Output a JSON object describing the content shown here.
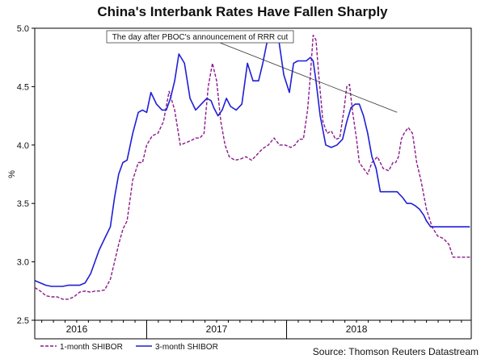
{
  "title": "China's Interbank Rates Have Fallen Sharply",
  "source": "Source: Thomson Reuters Datastream",
  "chart_data": {
    "type": "line",
    "ylabel": "%",
    "xlabel": "",
    "ylim": [
      2.5,
      5.0
    ],
    "yticks": [
      "2.5",
      "3.0",
      "3.5",
      "4.0",
      "4.5",
      "5.0"
    ],
    "xlim": [
      2015.7,
      2018.82
    ],
    "year_labels": [
      {
        "label": "2016",
        "x": 2016.0
      },
      {
        "label": "2017",
        "x": 2017.0
      },
      {
        "label": "2018",
        "x": 2018.0
      }
    ],
    "grid": false,
    "legend_position": "bottom",
    "annotation": {
      "text": "The day after PBOC's announcement of RRR cut",
      "points_to_x": 2018.29,
      "points_to_y": 4.28
    },
    "series": [
      {
        "name": "1-month SHIBOR",
        "color": "#8b1a8b",
        "style": "dashed",
        "x": [
          2015.7,
          2015.74,
          2015.78,
          2015.82,
          2015.86,
          2015.9,
          2015.94,
          2015.98,
          2016.02,
          2016.06,
          2016.1,
          2016.13,
          2016.16,
          2016.2,
          2016.24,
          2016.27,
          2016.3,
          2016.33,
          2016.36,
          2016.4,
          2016.44,
          2016.47,
          2016.5,
          2016.54,
          2016.58,
          2016.62,
          2016.66,
          2016.7,
          2016.74,
          2016.78,
          2016.82,
          2016.85,
          2016.88,
          2016.91,
          2016.94,
          2016.97,
          2017.0,
          2017.03,
          2017.06,
          2017.09,
          2017.13,
          2017.17,
          2017.21,
          2017.25,
          2017.29,
          2017.33,
          2017.37,
          2017.41,
          2017.45,
          2017.49,
          2017.53,
          2017.56,
          2017.59,
          2017.62,
          2017.65,
          2017.67,
          2017.69,
          2017.71,
          2017.73,
          2017.76,
          2017.79,
          2017.82,
          2017.85,
          2017.88,
          2017.91,
          2017.93,
          2017.95,
          2017.97,
          2018.0,
          2018.02,
          2018.05,
          2018.08,
          2018.11,
          2018.15,
          2018.19,
          2018.23,
          2018.26,
          2018.28,
          2018.3,
          2018.32,
          2018.34,
          2018.37,
          2018.4,
          2018.43,
          2018.46,
          2018.5,
          2018.54,
          2018.58,
          2018.62,
          2018.66,
          2018.69,
          2018.71,
          2018.73,
          2018.75,
          2018.78,
          2018.81
        ],
        "values": [
          2.78,
          2.75,
          2.71,
          2.7,
          2.7,
          2.68,
          2.68,
          2.7,
          2.74,
          2.75,
          2.74,
          2.75,
          2.75,
          2.76,
          2.85,
          3.0,
          3.15,
          3.28,
          3.35,
          3.7,
          3.85,
          3.85,
          4.0,
          4.08,
          4.1,
          4.2,
          4.46,
          4.3,
          4.0,
          4.02,
          4.04,
          4.06,
          4.06,
          4.1,
          4.5,
          4.7,
          4.55,
          4.2,
          4.0,
          3.9,
          3.87,
          3.88,
          3.9,
          3.87,
          3.92,
          3.97,
          4.0,
          4.06,
          4.0,
          4.0,
          3.98,
          4.0,
          4.05,
          4.05,
          4.3,
          4.6,
          4.94,
          4.9,
          4.6,
          4.2,
          4.1,
          4.12,
          4.05,
          4.06,
          4.3,
          4.5,
          4.52,
          4.3,
          4.05,
          3.85,
          3.8,
          3.75,
          3.85,
          3.9,
          3.8,
          3.78,
          3.85,
          3.85,
          3.9,
          4.05,
          4.1,
          4.15,
          4.1,
          3.85,
          3.7,
          3.45,
          3.3,
          3.22,
          3.2,
          3.15,
          3.04,
          3.04,
          3.04,
          3.04,
          3.04,
          3.04
        ]
      },
      {
        "name": "3-month SHIBOR",
        "color": "#1f1fd6",
        "style": "solid",
        "x": [
          2015.7,
          2015.74,
          2015.78,
          2015.82,
          2015.86,
          2015.9,
          2015.94,
          2015.98,
          2016.02,
          2016.06,
          2016.1,
          2016.13,
          2016.16,
          2016.2,
          2016.24,
          2016.27,
          2016.3,
          2016.33,
          2016.36,
          2016.4,
          2016.44,
          2016.47,
          2016.5,
          2016.53,
          2016.57,
          2016.61,
          2016.64,
          2016.67,
          2016.7,
          2016.73,
          2016.77,
          2016.81,
          2016.85,
          2016.89,
          2016.93,
          2016.96,
          2016.98,
          2017.01,
          2017.04,
          2017.07,
          2017.1,
          2017.14,
          2017.18,
          2017.22,
          2017.26,
          2017.3,
          2017.33,
          2017.36,
          2017.4,
          2017.44,
          2017.48,
          2017.52,
          2017.55,
          2017.58,
          2017.61,
          2017.64,
          2017.67,
          2017.69,
          2017.71,
          2017.74,
          2017.78,
          2017.82,
          2017.86,
          2017.9,
          2017.93,
          2017.96,
          2017.99,
          2018.02,
          2018.05,
          2018.08,
          2018.11,
          2018.14,
          2018.17,
          2018.21,
          2018.25,
          2018.29,
          2018.33,
          2018.36,
          2018.39,
          2018.42,
          2018.45,
          2018.48,
          2018.5,
          2018.53,
          2018.56,
          2018.6,
          2018.64,
          2018.68,
          2018.71,
          2018.74,
          2018.78,
          2018.81
        ],
        "values": [
          2.84,
          2.82,
          2.8,
          2.79,
          2.79,
          2.79,
          2.8,
          2.8,
          2.8,
          2.82,
          2.9,
          3.0,
          3.1,
          3.2,
          3.3,
          3.55,
          3.75,
          3.85,
          3.87,
          4.1,
          4.28,
          4.3,
          4.28,
          4.45,
          4.35,
          4.3,
          4.3,
          4.4,
          4.55,
          4.78,
          4.7,
          4.4,
          4.3,
          4.35,
          4.4,
          4.38,
          4.32,
          4.25,
          4.3,
          4.4,
          4.33,
          4.3,
          4.35,
          4.7,
          4.55,
          4.55,
          4.7,
          4.88,
          4.94,
          4.93,
          4.6,
          4.45,
          4.7,
          4.72,
          4.72,
          4.72,
          4.75,
          4.72,
          4.55,
          4.25,
          4.0,
          3.98,
          4.0,
          4.05,
          4.2,
          4.32,
          4.35,
          4.35,
          4.25,
          4.1,
          3.9,
          3.8,
          3.6,
          3.6,
          3.6,
          3.6,
          3.55,
          3.5,
          3.5,
          3.48,
          3.45,
          3.4,
          3.35,
          3.3,
          3.3,
          3.3,
          3.3,
          3.3,
          3.3,
          3.3,
          3.3,
          3.3
        ]
      }
    ]
  }
}
